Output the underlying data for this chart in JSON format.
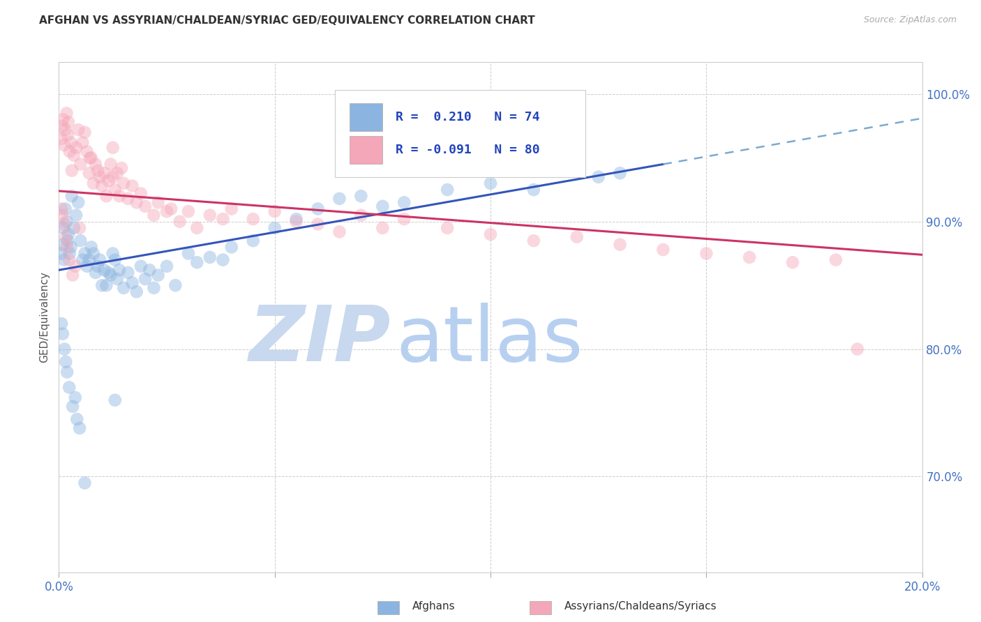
{
  "title": "AFGHAN VS ASSYRIAN/CHALDEAN/SYRIAC GED/EQUIVALENCY CORRELATION CHART",
  "source": "Source: ZipAtlas.com",
  "ylabel": "GED/Equivalency",
  "yticks": [
    0.7,
    0.8,
    0.9,
    1.0
  ],
  "ytick_labels": [
    "70.0%",
    "80.0%",
    "90.0%",
    "100.0%"
  ],
  "xlim": [
    0.0,
    20.0
  ],
  "ylim": [
    0.625,
    1.025
  ],
  "color_blue": "#8cb4e0",
  "color_pink": "#f4a7b9",
  "color_blue_line": "#3355bb",
  "color_pink_line": "#cc3366",
  "color_blue_line_dashed": "#7aaad0",
  "watermark_zip": "ZIP",
  "watermark_atlas": "atlas",
  "watermark_color_zip": "#c8d8ee",
  "watermark_color_atlas": "#b8d0f0",
  "background_color": "#ffffff",
  "grid_color": "#cccccc",
  "title_color": "#333333",
  "tick_label_color": "#4472c4",
  "blue_trend_x0": 0.0,
  "blue_trend_y0": 0.862,
  "blue_trend_x1": 14.0,
  "blue_trend_y1": 0.945,
  "blue_trend_x2": 20.0,
  "blue_trend_y2": 0.981,
  "pink_trend_x0": 0.0,
  "pink_trend_y0": 0.924,
  "pink_trend_x1": 20.0,
  "pink_trend_y1": 0.874,
  "afghans_x": [
    0.05,
    0.08,
    0.1,
    0.12,
    0.15,
    0.18,
    0.2,
    0.22,
    0.25,
    0.28,
    0.3,
    0.35,
    0.4,
    0.45,
    0.5,
    0.55,
    0.6,
    0.65,
    0.7,
    0.75,
    0.8,
    0.85,
    0.9,
    0.95,
    1.0,
    1.05,
    1.1,
    1.15,
    1.2,
    1.25,
    1.3,
    1.35,
    1.4,
    1.5,
    1.6,
    1.7,
    1.8,
    1.9,
    2.0,
    2.1,
    2.2,
    2.3,
    2.5,
    2.7,
    3.0,
    3.2,
    3.5,
    3.8,
    4.0,
    4.5,
    5.0,
    5.5,
    6.0,
    6.5,
    7.0,
    7.5,
    8.0,
    9.0,
    10.0,
    11.0,
    12.5,
    13.0,
    0.06,
    0.09,
    0.13,
    0.16,
    0.19,
    0.24,
    0.32,
    0.38,
    0.42,
    0.48,
    0.6,
    1.3
  ],
  "afghans_y": [
    0.875,
    0.882,
    0.895,
    0.87,
    0.91,
    0.9,
    0.885,
    0.89,
    0.875,
    0.88,
    0.92,
    0.895,
    0.905,
    0.915,
    0.885,
    0.87,
    0.875,
    0.865,
    0.87,
    0.88,
    0.875,
    0.86,
    0.865,
    0.87,
    0.85,
    0.862,
    0.85,
    0.86,
    0.858,
    0.875,
    0.87,
    0.855,
    0.862,
    0.848,
    0.86,
    0.852,
    0.845,
    0.865,
    0.855,
    0.862,
    0.848,
    0.858,
    0.865,
    0.85,
    0.875,
    0.868,
    0.872,
    0.87,
    0.88,
    0.885,
    0.895,
    0.902,
    0.91,
    0.918,
    0.92,
    0.912,
    0.915,
    0.925,
    0.93,
    0.925,
    0.935,
    0.938,
    0.82,
    0.812,
    0.8,
    0.79,
    0.782,
    0.77,
    0.755,
    0.762,
    0.745,
    0.738,
    0.695,
    0.76
  ],
  "assyrian_x": [
    0.05,
    0.08,
    0.1,
    0.12,
    0.15,
    0.18,
    0.2,
    0.22,
    0.25,
    0.28,
    0.3,
    0.35,
    0.4,
    0.45,
    0.5,
    0.55,
    0.6,
    0.65,
    0.7,
    0.75,
    0.8,
    0.85,
    0.9,
    0.95,
    1.0,
    1.05,
    1.1,
    1.15,
    1.2,
    1.25,
    1.3,
    1.35,
    1.4,
    1.5,
    1.6,
    1.7,
    1.8,
    1.9,
    2.0,
    2.2,
    2.5,
    2.8,
    3.0,
    3.2,
    3.5,
    4.0,
    4.5,
    5.0,
    5.5,
    6.0,
    6.5,
    7.0,
    7.5,
    8.0,
    9.0,
    10.0,
    11.0,
    12.0,
    13.0,
    14.0,
    15.0,
    16.0,
    17.0,
    18.0,
    18.5,
    0.06,
    0.09,
    0.13,
    0.16,
    0.19,
    0.24,
    0.32,
    0.38,
    0.48,
    0.72,
    1.25,
    1.45,
    2.3,
    2.6,
    3.8
  ],
  "assyrian_y": [
    0.965,
    0.975,
    0.98,
    0.96,
    0.972,
    0.985,
    0.968,
    0.978,
    0.955,
    0.962,
    0.94,
    0.952,
    0.958,
    0.972,
    0.945,
    0.962,
    0.97,
    0.955,
    0.938,
    0.95,
    0.93,
    0.945,
    0.94,
    0.935,
    0.928,
    0.938,
    0.92,
    0.932,
    0.945,
    0.935,
    0.925,
    0.938,
    0.92,
    0.93,
    0.918,
    0.928,
    0.915,
    0.922,
    0.912,
    0.905,
    0.908,
    0.9,
    0.908,
    0.895,
    0.905,
    0.91,
    0.902,
    0.908,
    0.9,
    0.898,
    0.892,
    0.905,
    0.895,
    0.902,
    0.895,
    0.89,
    0.885,
    0.888,
    0.882,
    0.878,
    0.875,
    0.872,
    0.868,
    0.87,
    0.8,
    0.91,
    0.905,
    0.898,
    0.888,
    0.88,
    0.87,
    0.858,
    0.865,
    0.895,
    0.95,
    0.958,
    0.942,
    0.915,
    0.91,
    0.902
  ]
}
